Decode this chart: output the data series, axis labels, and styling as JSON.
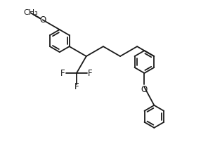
{
  "bg_color": "#ffffff",
  "line_color": "#1a1a1a",
  "line_width": 1.3,
  "font_size": 8.5,
  "fig_width": 2.96,
  "fig_height": 2.22,
  "dpi": 100,
  "xlim": [
    -1.0,
    9.5
  ],
  "ylim": [
    -4.5,
    4.0
  ]
}
